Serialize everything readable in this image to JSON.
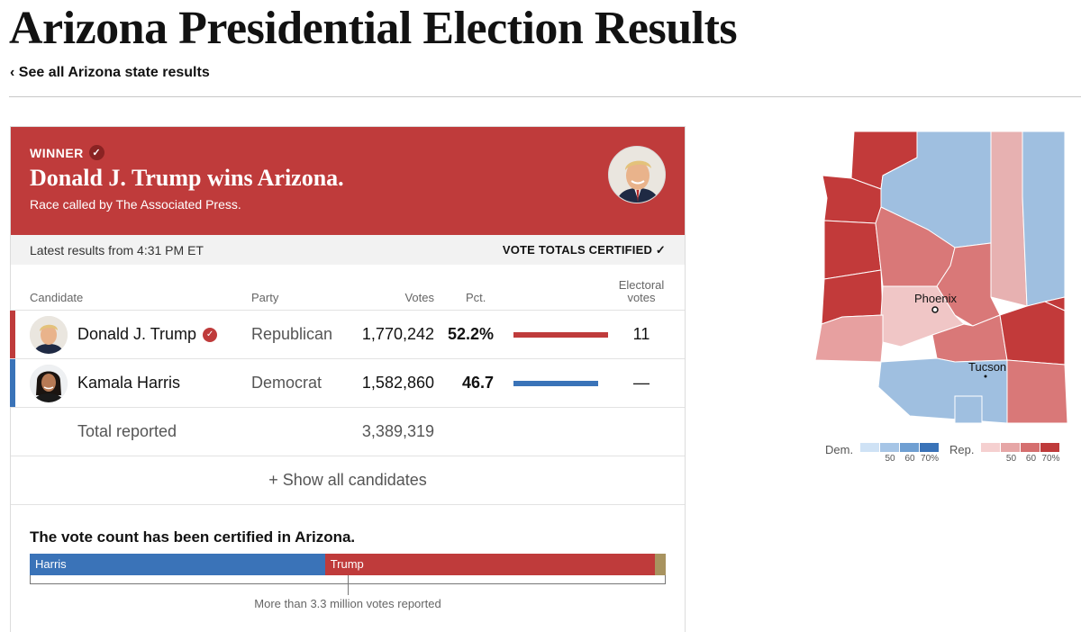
{
  "header": {
    "title": "Arizona Presidential Election Results",
    "back_link": "‹ See all Arizona state results"
  },
  "winner": {
    "label": "WINNER",
    "headline": "Donald J. Trump wins Arizona.",
    "called_by": "Race called by The Associated Press."
  },
  "status": {
    "latest": "Latest results from 4:31 PM ET",
    "certified": "VOTE TOTALS CERTIFIED ✓"
  },
  "table": {
    "headers": {
      "candidate": "Candidate",
      "party": "Party",
      "votes": "Votes",
      "pct": "Pct.",
      "electoral_line1": "Electoral",
      "electoral_line2": "votes"
    },
    "rows": [
      {
        "name": "Donald J. Trump",
        "party": "Republican",
        "votes": "1,770,242",
        "pct": "52.2%",
        "pct_value": 52.2,
        "electoral": "11",
        "winner": true,
        "color": "#bf3b3b"
      },
      {
        "name": "Kamala Harris",
        "party": "Democrat",
        "votes": "1,582,860",
        "pct": "46.7",
        "pct_value": 46.7,
        "electoral": "—",
        "winner": false,
        "color": "#3a73b8"
      }
    ],
    "total_label": "Total reported",
    "total_votes": "3,389,319",
    "show_all": "+ Show all candidates"
  },
  "certification": {
    "heading": "The vote count has been certified in Arizona.",
    "share": [
      {
        "label": "Harris",
        "fraction": 0.467,
        "color": "#3a73b8"
      },
      {
        "label": "Trump",
        "fraction": 0.522,
        "color": "#bf3b3b"
      },
      {
        "label": "",
        "fraction": 0.011,
        "color": "#a8935f"
      }
    ],
    "caption": "More than 3.3 million votes reported"
  },
  "map": {
    "cities": {
      "phoenix": "Phoenix",
      "tucson": "Tucson"
    }
  },
  "legend": {
    "dem_label": "Dem.",
    "rep_label": "Rep.",
    "ticks": [
      "50",
      "60",
      "70%"
    ],
    "dem_colors": [
      "#cfe2f5",
      "#a6c5e6",
      "#6f9fd2",
      "#3a73b8"
    ],
    "rep_colors": [
      "#f5d0d0",
      "#e6a6a6",
      "#d56f6f",
      "#bf3b3b"
    ]
  },
  "colors": {
    "rep": "#bf3b3b",
    "dem": "#3a73b8"
  }
}
